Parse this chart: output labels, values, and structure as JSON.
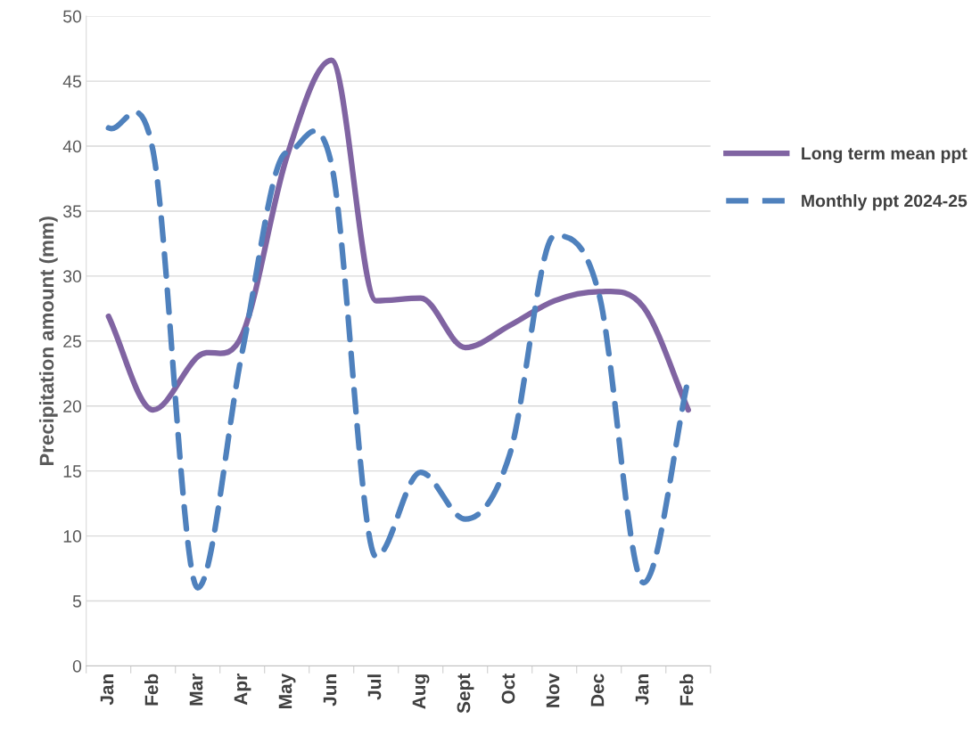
{
  "chart_data": {
    "type": "line",
    "ylabel": "Precipitation amount (mm)",
    "categories": [
      "Jan",
      "Feb",
      "Mar",
      "Apr",
      "May",
      "Jun",
      "Jul",
      "Aug",
      "Sept",
      "Oct",
      "Nov",
      "Dec",
      "Jan",
      "Feb"
    ],
    "series": [
      {
        "name": "Long term mean ppt",
        "color": "#8064a2",
        "line_style": "solid",
        "values": [
          26.9,
          19.7,
          23.8,
          25.5,
          39.2,
          46.6,
          28.1,
          28.3,
          24.5,
          26.2,
          28.1,
          28.8,
          27.6,
          19.7
        ]
      },
      {
        "name": "Monthly ppt 2024-25",
        "color": "#4f81bd",
        "line_style": "dashed",
        "values": [
          41.4,
          39.6,
          6.0,
          24.2,
          39.5,
          38.6,
          8.4,
          14.9,
          11.3,
          16.3,
          33.1,
          28.6,
          6.4,
          22.1
        ]
      }
    ],
    "ylim": [
      0,
      50
    ],
    "yticks": [
      0,
      5,
      10,
      15,
      20,
      25,
      30,
      35,
      40,
      45,
      50
    ],
    "grid": "y",
    "legend": "right",
    "marker": "none"
  }
}
